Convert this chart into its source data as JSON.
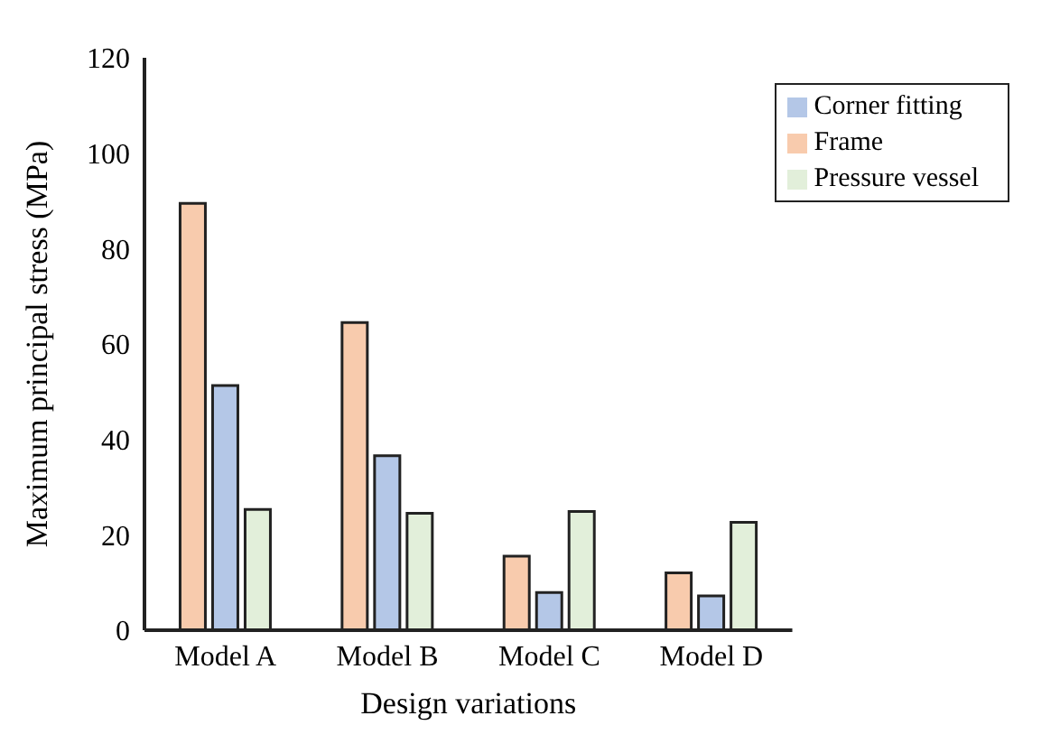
{
  "chart_data": {
    "type": "bar",
    "xlabel": "Design variations",
    "ylabel": "Maximum principal stress (MPa)",
    "categories": [
      "Model A",
      "Model B",
      "Model C",
      "Model D"
    ],
    "series": [
      {
        "name": "Frame",
        "color": "#f8cbad",
        "values": [
          89.5,
          64.5,
          15.5,
          12
        ]
      },
      {
        "name": "Corner fitting",
        "color": "#b4c7e7",
        "values": [
          51.3,
          36.6,
          7.9,
          7.2
        ]
      },
      {
        "name": "Pressure vessel",
        "color": "#e2efda",
        "values": [
          25.3,
          24.5,
          24.9,
          22.6
        ]
      }
    ],
    "ylim": [
      0,
      120
    ],
    "yticks": [
      0,
      20,
      40,
      60,
      80,
      100,
      120
    ],
    "grid": false,
    "legend": "top right"
  }
}
